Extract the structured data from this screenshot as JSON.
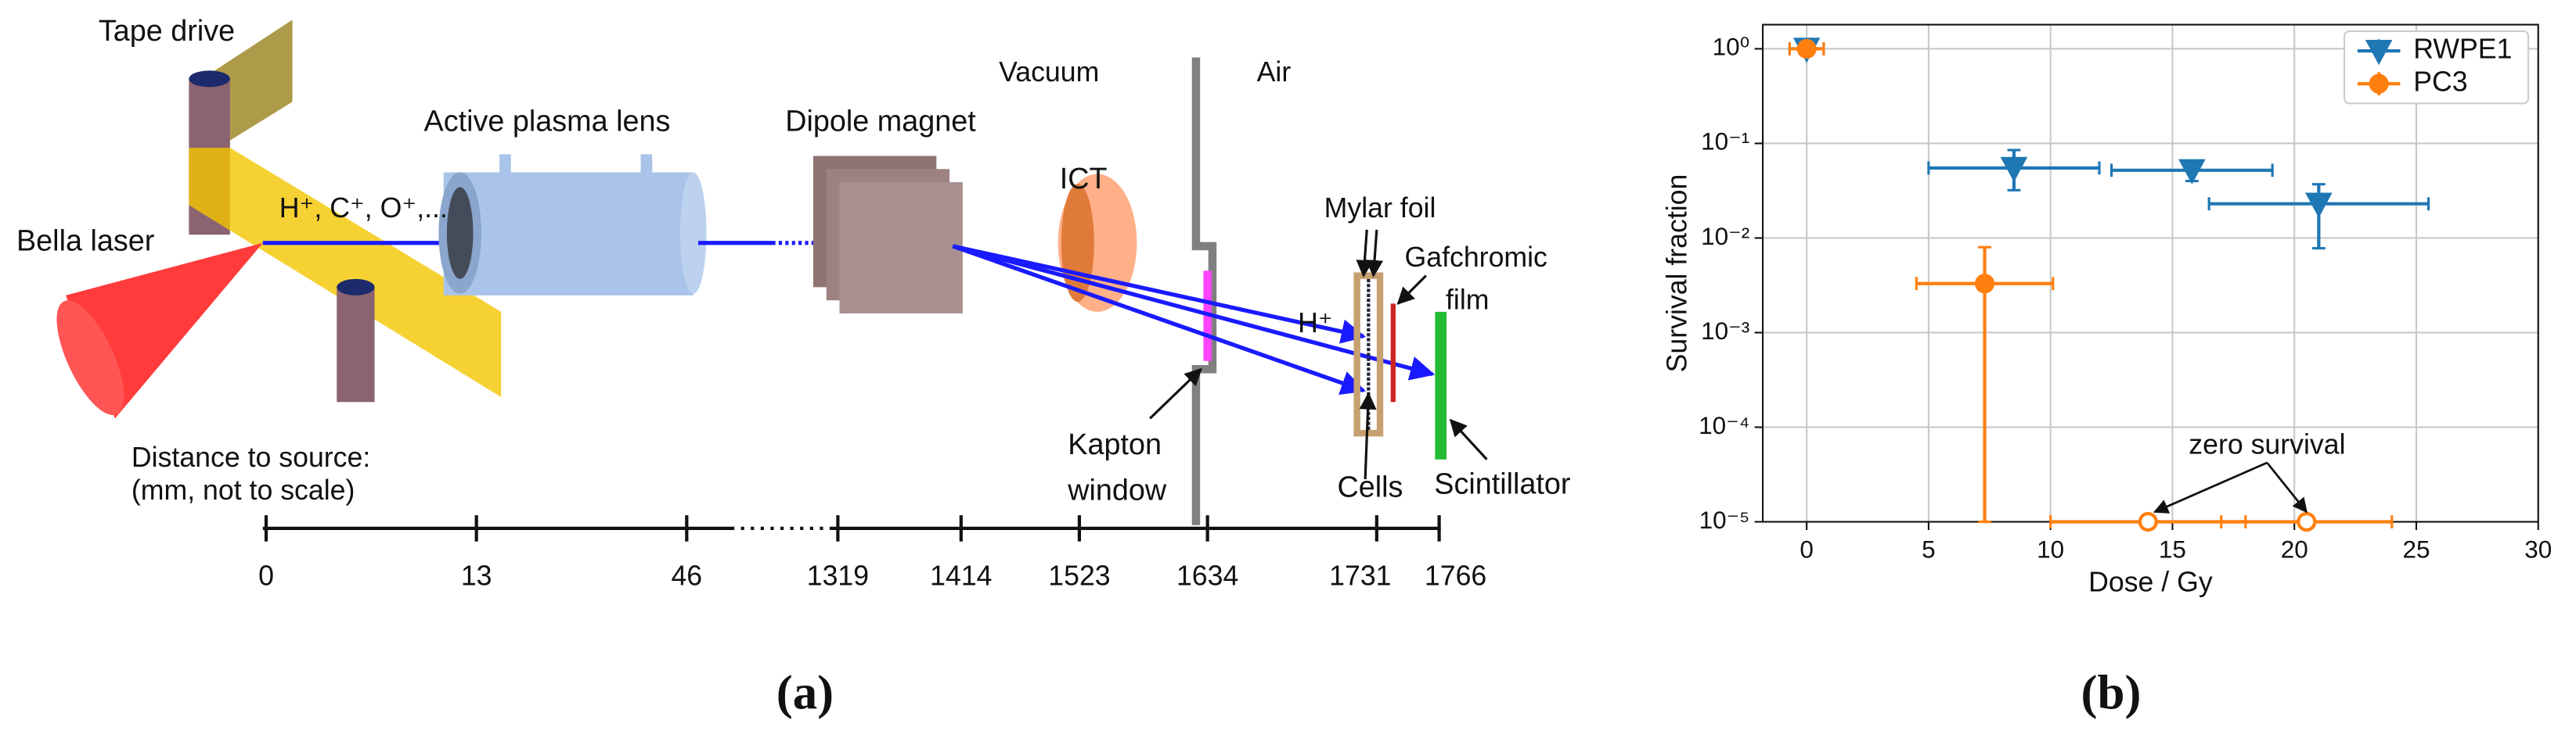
{
  "diagram": {
    "labels": {
      "tape_drive": "Tape drive",
      "bella_laser": "Bella laser",
      "ions": "H⁺, C⁺, O⁺,...",
      "plasma_lens": "Active plasma lens",
      "dipole": "Dipole magnet",
      "ict": "ICT",
      "vacuum": "Vacuum",
      "air": "Air",
      "mylar": "Mylar foil",
      "gafchromic": "Gafchromic",
      "film": "film",
      "proton": "H⁺",
      "kapton": "Kapton",
      "window": "window",
      "cells": "Cells",
      "scintillator": "Scintillator",
      "distance": "Distance to source:",
      "distance_note": "(mm, not to scale)"
    },
    "distance_ticks": [
      0,
      13,
      46,
      1319,
      1414,
      1523,
      1634,
      1731,
      1766
    ],
    "caption": "(a)"
  },
  "chart_data": {
    "type": "scatter",
    "caption": "(b)",
    "xlabel": "Dose / Gy",
    "ylabel": "Survival fraction",
    "xlim": [
      -1.8,
      30
    ],
    "xticks": [
      0,
      5,
      10,
      15,
      20,
      25,
      30
    ],
    "ylim": [
      1e-05,
      1.8
    ],
    "log_y": true,
    "yticks": [
      {
        "value": 1e-05,
        "label": "10⁻⁵"
      },
      {
        "value": 0.0001,
        "label": "10⁻⁴"
      },
      {
        "value": 0.001,
        "label": "10⁻³"
      },
      {
        "value": 0.01,
        "label": "10⁻²"
      },
      {
        "value": 0.1,
        "label": "10⁻¹"
      },
      {
        "value": 1,
        "label": "10⁰"
      }
    ],
    "grid": true,
    "legend": "upper right",
    "series": [
      {
        "name": "RWPE1",
        "color": "#1f77b4",
        "marker": "triangle-down",
        "x": [
          0,
          8.5,
          15.8,
          21
        ],
        "values": [
          1,
          0.055,
          0.052,
          0.023
        ],
        "xerr": [
          0.7,
          3.5,
          3.3,
          4.5
        ],
        "yerr": [
          [
            0,
            0
          ],
          [
            0.023,
            0.03
          ],
          [
            0.012,
            0.013
          ],
          [
            0.0152,
            0.014
          ]
        ],
        "hollow": [
          false,
          false,
          false,
          false
        ]
      },
      {
        "name": "PC3",
        "color": "#ff7f0e",
        "marker": "circle",
        "x": [
          0,
          7.3,
          14,
          20.5
        ],
        "values": [
          1,
          0.0033,
          1e-05,
          1e-05
        ],
        "xerr": [
          0.7,
          2.8,
          4,
          3.5
        ],
        "yerr": [
          [
            0,
            0
          ],
          [
            0.00329,
            0.0047
          ],
          null,
          null
        ],
        "hollow": [
          false,
          false,
          true,
          true
        ]
      }
    ],
    "annotation": "zero survival"
  }
}
